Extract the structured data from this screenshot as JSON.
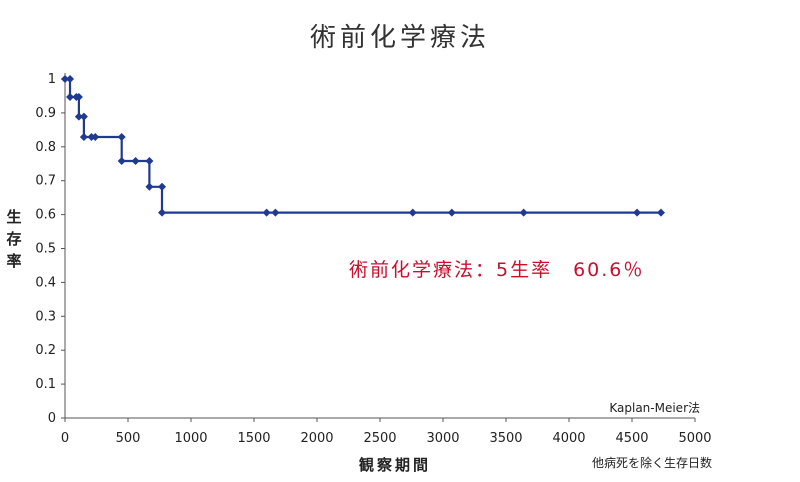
{
  "chart_data": {
    "type": "line",
    "title": "術前化学療法",
    "xlabel": "観察期間",
    "xlabel_note": "他病死を除く生存日数",
    "ylabel": "生存率",
    "xlim": [
      0,
      5000
    ],
    "ylim": [
      0,
      1
    ],
    "x_ticks": [
      "0",
      "500",
      "1000",
      "1500",
      "2000",
      "2500",
      "3000",
      "3500",
      "4000",
      "4500",
      "5000"
    ],
    "y_ticks": [
      "0",
      "0.1",
      "0.2",
      "0.3",
      "0.4",
      "0.5",
      "0.6",
      "0.7",
      "0.8",
      "0.9",
      "1"
    ],
    "grid": false,
    "annotation": "術前化学療法：5生率　60.6％",
    "method_note": "Kaplan-Meier法",
    "series_color": "#1f3a8f",
    "annotation_color": "#c8102e",
    "series": [
      {
        "name": "",
        "step_points": [
          [
            0,
            1.0
          ],
          [
            40,
            1.0
          ],
          [
            40,
            0.947
          ],
          [
            90,
            0.947
          ],
          [
            90,
            0.947
          ],
          [
            110,
            0.947
          ],
          [
            110,
            0.889
          ],
          [
            150,
            0.889
          ],
          [
            150,
            0.829
          ],
          [
            400,
            0.829
          ],
          [
            450,
            0.829
          ],
          [
            450,
            0.758
          ],
          [
            560,
            0.758
          ],
          [
            670,
            0.758
          ],
          [
            670,
            0.682
          ],
          [
            770,
            0.682
          ],
          [
            770,
            0.606
          ],
          [
            4730,
            0.606
          ]
        ],
        "markers": [
          [
            0,
            1.0
          ],
          [
            40,
            1.0
          ],
          [
            40,
            0.947
          ],
          [
            90,
            0.947
          ],
          [
            110,
            0.947
          ],
          [
            110,
            0.889
          ],
          [
            150,
            0.889
          ],
          [
            150,
            0.829
          ],
          [
            210,
            0.829
          ],
          [
            240,
            0.829
          ],
          [
            450,
            0.829
          ],
          [
            450,
            0.758
          ],
          [
            560,
            0.758
          ],
          [
            670,
            0.758
          ],
          [
            670,
            0.682
          ],
          [
            770,
            0.682
          ],
          [
            770,
            0.606
          ],
          [
            1600,
            0.606
          ],
          [
            1670,
            0.606
          ],
          [
            2760,
            0.606
          ],
          [
            3070,
            0.606
          ],
          [
            3640,
            0.606
          ],
          [
            4540,
            0.606
          ],
          [
            4730,
            0.606
          ]
        ]
      }
    ]
  }
}
